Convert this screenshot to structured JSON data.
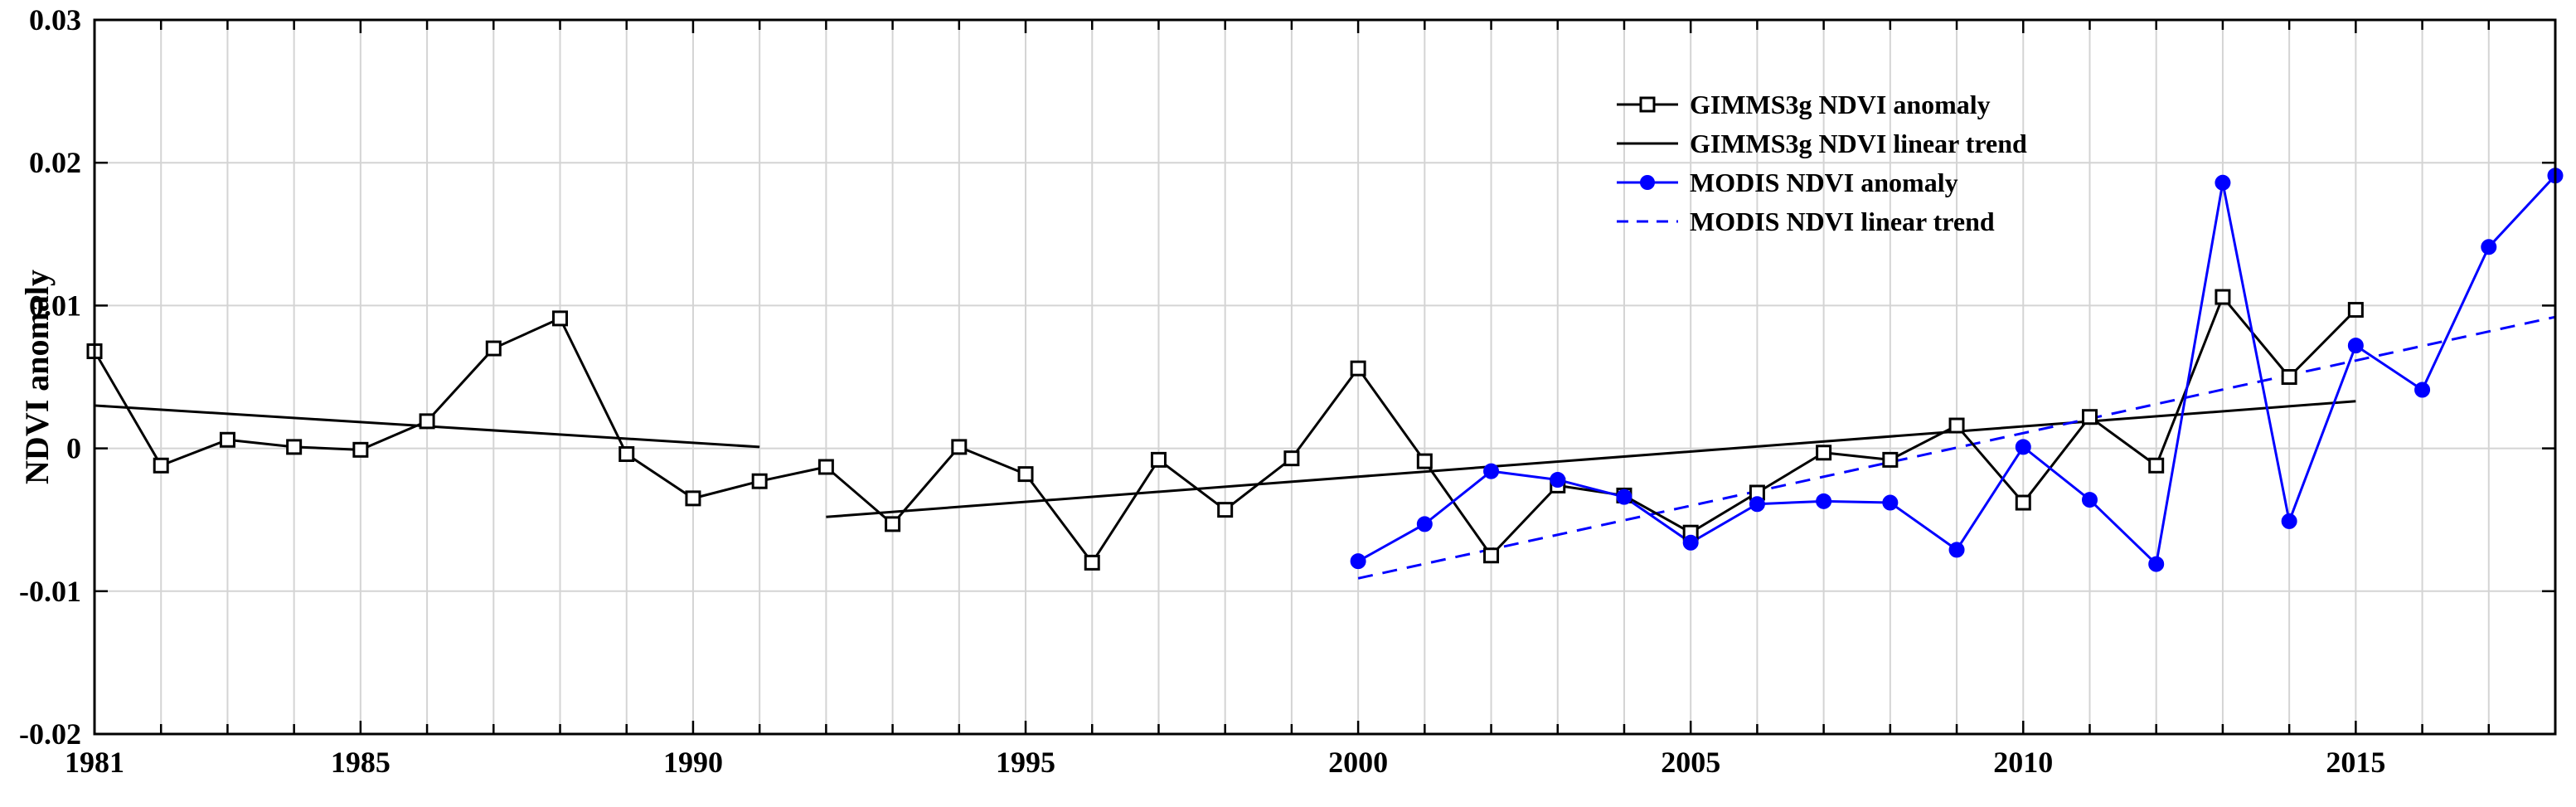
{
  "chart_data": {
    "type": "line",
    "title": "",
    "xlabel": "",
    "ylabel": "NDVI anomaly",
    "xlim": [
      1981,
      2018
    ],
    "ylim": [
      -0.02,
      0.03
    ],
    "grid": true,
    "legend_position": "top-right",
    "x_ticks": [
      1981,
      1985,
      1990,
      1995,
      2000,
      2005,
      2010,
      2015
    ],
    "y_ticks": [
      -0.02,
      -0.01,
      0,
      0.01,
      0.02,
      0.03
    ],
    "x_tick_labels": [
      "1981",
      "1985",
      "1990",
      "1995",
      "2000",
      "2005",
      "2010",
      "2015"
    ],
    "y_tick_labels": [
      "-0.02",
      "-0.01",
      "0",
      "0.01",
      "0.02",
      "0.03"
    ],
    "series": [
      {
        "name": "GIMMS3g NDVI anomaly",
        "color": "#000000",
        "marker": "square",
        "line": "solid",
        "x": [
          1981,
          1982,
          1983,
          1984,
          1985,
          1986,
          1987,
          1988,
          1989,
          1990,
          1991,
          1992,
          1993,
          1994,
          1995,
          1996,
          1997,
          1998,
          1999,
          2000,
          2001,
          2002,
          2003,
          2004,
          2005,
          2006,
          2007,
          2008,
          2009,
          2010,
          2011,
          2012,
          2013,
          2014,
          2015
        ],
        "y": [
          0.0068,
          -0.0012,
          0.0006,
          0.0001,
          -0.0001,
          0.0019,
          0.007,
          0.0091,
          -0.0004,
          -0.0035,
          -0.0023,
          -0.0013,
          -0.0053,
          0.0001,
          -0.0018,
          -0.008,
          -0.0008,
          -0.0043,
          -0.0007,
          0.0056,
          -0.0009,
          -0.0075,
          -0.0026,
          -0.0033,
          -0.0059,
          -0.0031,
          -0.0003,
          -0.0008,
          0.0016,
          -0.0038,
          0.0022,
          -0.0012,
          0.0106,
          0.005,
          0.0097
        ]
      },
      {
        "name": "GIMMS3g NDVI linear trend",
        "color": "#000000",
        "marker": "none",
        "line": "solid",
        "segments": [
          {
            "x": [
              1981,
              1991
            ],
            "y": [
              0.003,
              0.0001
            ]
          },
          {
            "x": [
              1992,
              2015
            ],
            "y": [
              -0.0048,
              0.0033
            ]
          }
        ]
      },
      {
        "name": "MODIS NDVI anomaly",
        "color": "#0000ff",
        "marker": "circle",
        "line": "solid",
        "x": [
          2000,
          2001,
          2002,
          2003,
          2004,
          2005,
          2006,
          2007,
          2008,
          2009,
          2010,
          2011,
          2012,
          2013,
          2014,
          2015,
          2016,
          2017,
          2018
        ],
        "y": [
          -0.0079,
          -0.0053,
          -0.0016,
          -0.0022,
          -0.0034,
          -0.0066,
          -0.0039,
          -0.0037,
          -0.0038,
          -0.0071,
          0.0001,
          -0.0036,
          -0.0081,
          0.0186,
          -0.0051,
          0.0072,
          0.0041,
          0.0141,
          0.0191
        ]
      },
      {
        "name": "MODIS NDVI linear trend",
        "color": "#0000ff",
        "marker": "none",
        "line": "dashed",
        "segments": [
          {
            "x": [
              2000,
              2018
            ],
            "y": [
              -0.0091,
              0.0092
            ]
          }
        ]
      }
    ]
  }
}
